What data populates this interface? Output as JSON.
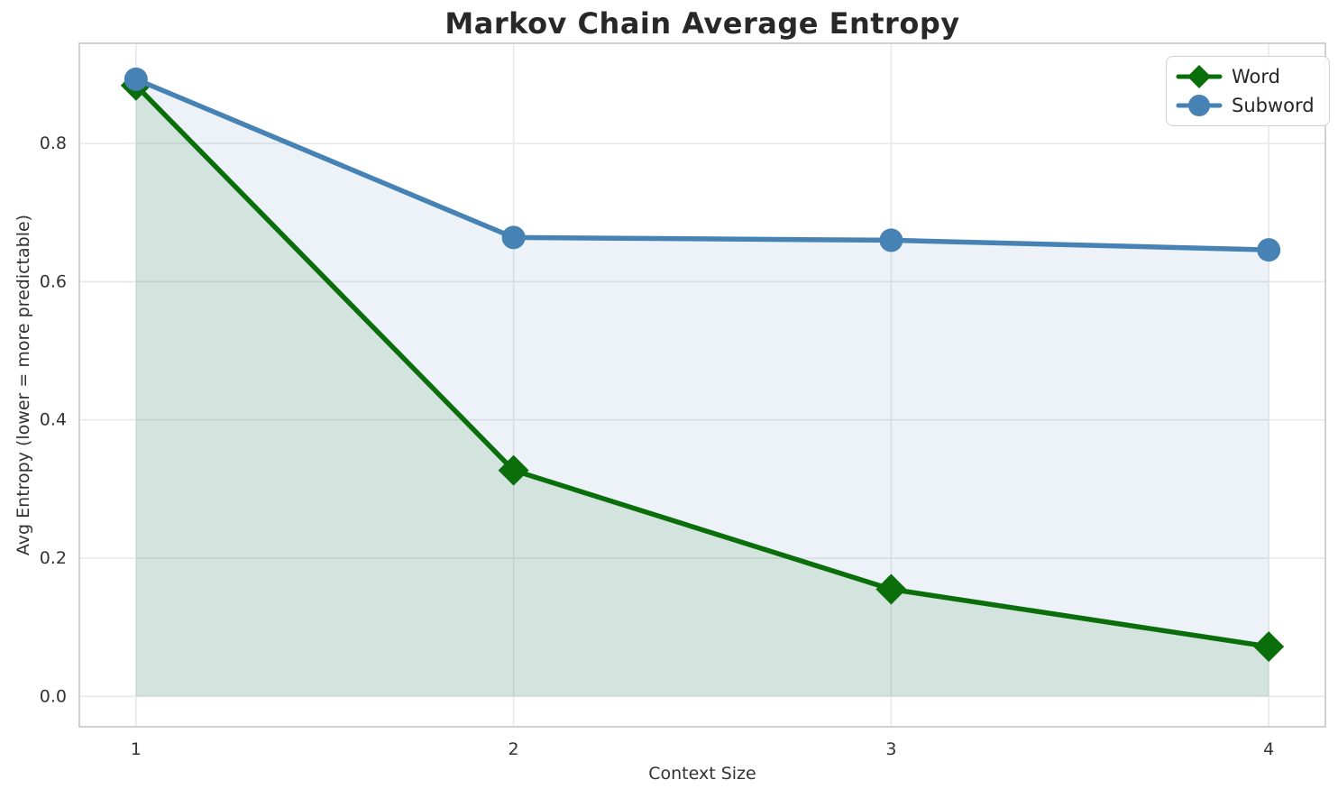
{
  "chart_data": {
    "type": "line",
    "title": "Markov Chain Average Entropy",
    "xlabel": "Context Size",
    "ylabel": "Avg Entropy (lower = more predictable)",
    "x": [
      1,
      2,
      3,
      4
    ],
    "series": [
      {
        "name": "Word",
        "values": [
          0.884,
          0.327,
          0.155,
          0.072
        ],
        "color": "#0a6e0a",
        "marker": "diamond",
        "fill_opacity": 0.11
      },
      {
        "name": "Subword",
        "values": [
          0.893,
          0.664,
          0.66,
          0.646
        ],
        "color": "#4682b4",
        "marker": "circle",
        "fill_opacity": 0.1
      }
    ],
    "xticks": [
      1,
      2,
      3,
      4
    ],
    "yticks": [
      0.0,
      0.2,
      0.4,
      0.6,
      0.8
    ],
    "xlim": [
      0.85,
      4.15
    ],
    "ylim": [
      -0.044,
      0.945
    ],
    "grid": true,
    "area_fill": true,
    "fill_baseline": 0,
    "legend_position": "upper right",
    "grid_color": "#e8e8e8",
    "spine_color": "#cccccc",
    "tick_color": "#333333"
  }
}
